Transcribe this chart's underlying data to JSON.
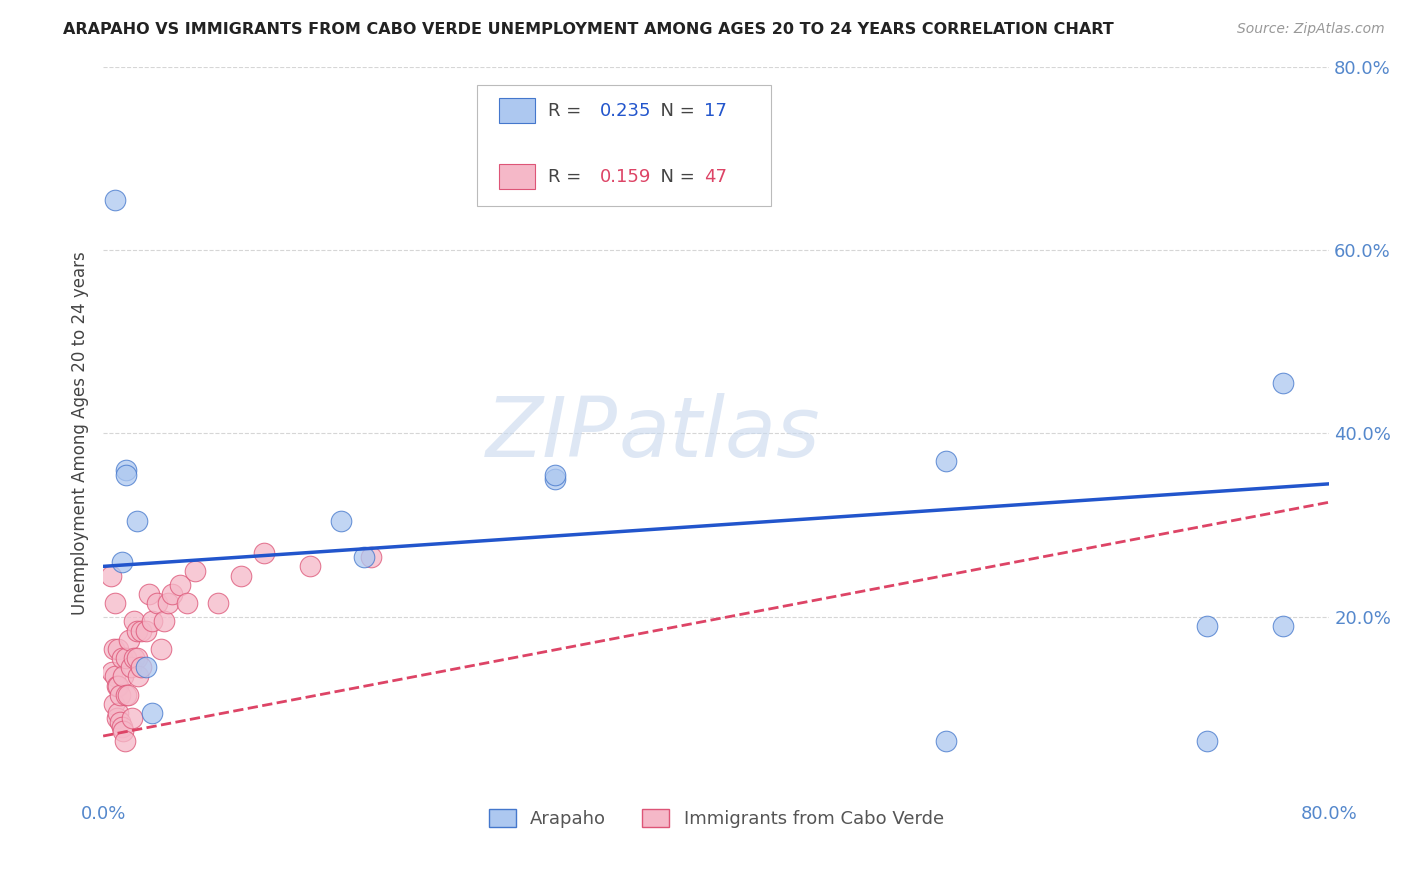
{
  "title": "ARAPAHO VS IMMIGRANTS FROM CABO VERDE UNEMPLOYMENT AMONG AGES 20 TO 24 YEARS CORRELATION CHART",
  "source": "Source: ZipAtlas.com",
  "ylabel": "Unemployment Among Ages 20 to 24 years",
  "xlim": [
    0.0,
    0.8
  ],
  "ylim": [
    0.0,
    0.8
  ],
  "xticks": [
    0.0,
    0.1,
    0.2,
    0.3,
    0.4,
    0.5,
    0.6,
    0.7,
    0.8
  ],
  "xticklabels": [
    "0.0%",
    "",
    "",
    "",
    "",
    "",
    "",
    "",
    "80.0%"
  ],
  "right_ytick_vals": [
    0.0,
    0.2,
    0.4,
    0.6,
    0.8
  ],
  "right_ytick_labels": [
    "",
    "20.0%",
    "40.0%",
    "60.0%",
    "80.0%"
  ],
  "arapaho_R": 0.235,
  "arapaho_N": 17,
  "cabo_verde_R": 0.159,
  "cabo_verde_N": 47,
  "arapaho_color": "#adc8f0",
  "cabo_verde_color": "#f5b8c8",
  "arapaho_edge_color": "#4477cc",
  "cabo_verde_edge_color": "#dd5577",
  "arapaho_line_color": "#2255cc",
  "cabo_verde_line_color": "#dd4466",
  "tick_color": "#5588cc",
  "watermark_zip": "ZIP",
  "watermark_atlas": "atlas",
  "arapaho_x": [
    0.008,
    0.012,
    0.015,
    0.015,
    0.022,
    0.028,
    0.032,
    0.155,
    0.17,
    0.295,
    0.295,
    0.55,
    0.55,
    0.72,
    0.72,
    0.77,
    0.77
  ],
  "arapaho_y": [
    0.655,
    0.26,
    0.36,
    0.355,
    0.305,
    0.145,
    0.095,
    0.305,
    0.265,
    0.35,
    0.355,
    0.37,
    0.065,
    0.19,
    0.065,
    0.455,
    0.19
  ],
  "cabo_verde_x": [
    0.005,
    0.006,
    0.007,
    0.007,
    0.008,
    0.008,
    0.009,
    0.009,
    0.01,
    0.01,
    0.01,
    0.011,
    0.011,
    0.012,
    0.012,
    0.013,
    0.013,
    0.014,
    0.015,
    0.015,
    0.016,
    0.017,
    0.018,
    0.019,
    0.02,
    0.02,
    0.022,
    0.022,
    0.023,
    0.025,
    0.025,
    0.028,
    0.03,
    0.032,
    0.035,
    0.038,
    0.04,
    0.042,
    0.045,
    0.05,
    0.055,
    0.06,
    0.075,
    0.09,
    0.105,
    0.135,
    0.175
  ],
  "cabo_verde_y": [
    0.245,
    0.14,
    0.165,
    0.105,
    0.215,
    0.135,
    0.125,
    0.09,
    0.165,
    0.125,
    0.095,
    0.115,
    0.085,
    0.08,
    0.155,
    0.135,
    0.075,
    0.065,
    0.155,
    0.115,
    0.115,
    0.175,
    0.145,
    0.09,
    0.195,
    0.155,
    0.185,
    0.155,
    0.135,
    0.185,
    0.145,
    0.185,
    0.225,
    0.195,
    0.215,
    0.165,
    0.195,
    0.215,
    0.225,
    0.235,
    0.215,
    0.25,
    0.215,
    0.245,
    0.27,
    0.255,
    0.265
  ],
  "arapaho_trendline": [
    0.0,
    0.8,
    0.255,
    0.345
  ],
  "cabo_verde_trendline": [
    0.0,
    0.8,
    0.07,
    0.325
  ]
}
